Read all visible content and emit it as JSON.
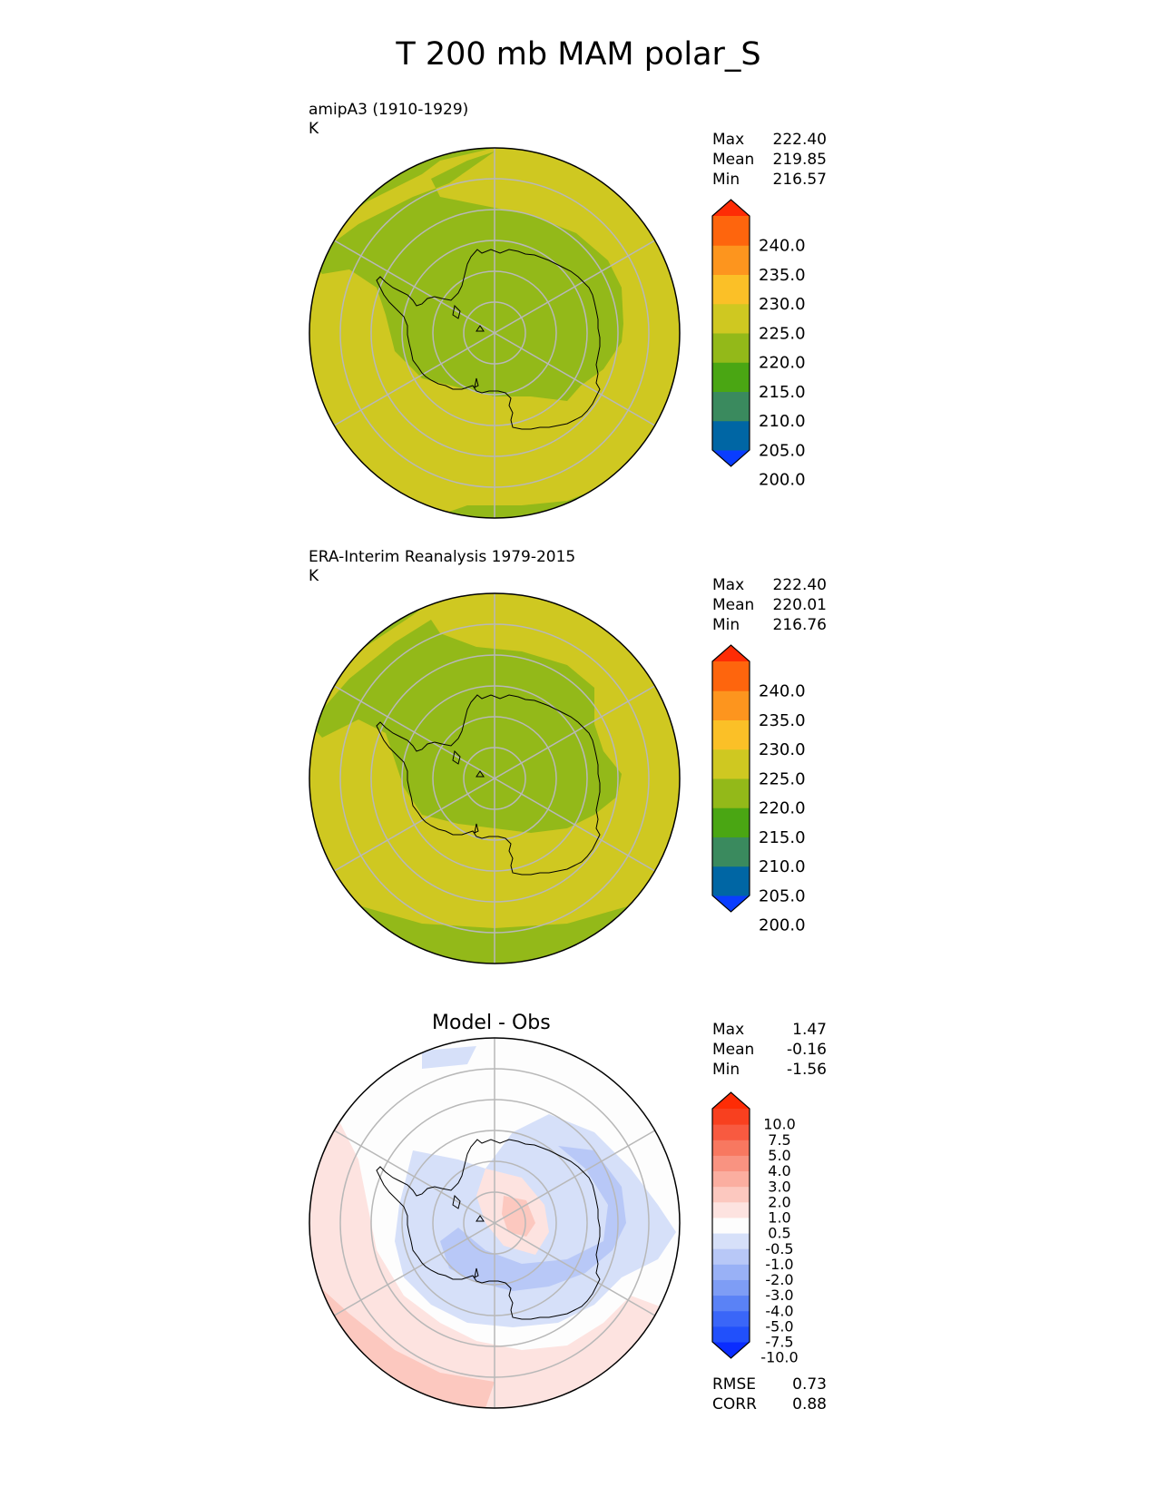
{
  "title": "T 200 mb MAM polar_S",
  "panels": [
    {
      "name": "model",
      "label": "amipA3 (1910-1929)",
      "units": "K",
      "stats": [
        [
          "Max",
          "222.40"
        ],
        [
          "Mean",
          "219.85"
        ],
        [
          "Min",
          "216.57"
        ]
      ]
    },
    {
      "name": "obs",
      "label": "ERA-Interim Reanalysis 1979-2015",
      "units": "K",
      "stats": [
        [
          "Max",
          "222.40"
        ],
        [
          "Mean",
          "220.01"
        ],
        [
          "Min",
          "216.76"
        ]
      ]
    },
    {
      "name": "diff",
      "title": "Model - Obs",
      "stats": [
        [
          "Max",
          "1.47"
        ],
        [
          "Mean",
          "-0.16"
        ],
        [
          "Min",
          "-1.56"
        ]
      ],
      "metrics": [
        [
          "RMSE",
          "0.73"
        ],
        [
          "CORR",
          "0.88"
        ]
      ]
    }
  ],
  "chart_data": [
    {
      "type": "heatmap",
      "subtype": "polar-stereographic contour map",
      "title": "amipA3 (1910-1929)",
      "units": "K",
      "levels": [
        200.0,
        205.0,
        210.0,
        215.0,
        220.0,
        225.0,
        230.0,
        235.0,
        240.0
      ],
      "colors": [
        "#0a3dff",
        "#0066a4",
        "#3a8a5e",
        "#4aa613",
        "#93b919",
        "#cfc821",
        "#fbc027",
        "#fd951e",
        "#fe650d",
        "#fe2c05"
      ],
      "colorbar_ticks": [
        "240.0",
        "235.0",
        "230.0",
        "225.0",
        "220.0",
        "215.0",
        "210.0",
        "205.0",
        "200.0"
      ],
      "stats": {
        "max": 222.4,
        "mean": 219.85,
        "min": 216.57
      }
    },
    {
      "type": "heatmap",
      "subtype": "polar-stereographic contour map",
      "title": "ERA-Interim Reanalysis 1979-2015",
      "units": "K",
      "levels": [
        200.0,
        205.0,
        210.0,
        215.0,
        220.0,
        225.0,
        230.0,
        235.0,
        240.0
      ],
      "colors": [
        "#0a3dff",
        "#0066a4",
        "#3a8a5e",
        "#4aa613",
        "#93b919",
        "#cfc821",
        "#fbc027",
        "#fd951e",
        "#fe650d",
        "#fe2c05"
      ],
      "colorbar_ticks": [
        "240.0",
        "235.0",
        "230.0",
        "225.0",
        "220.0",
        "215.0",
        "210.0",
        "205.0",
        "200.0"
      ],
      "stats": {
        "max": 222.4,
        "mean": 220.01,
        "min": 216.76
      }
    },
    {
      "type": "heatmap",
      "subtype": "polar-stereographic difference map",
      "title": "Model - Obs",
      "levels": [
        -10.0,
        -7.5,
        -5.0,
        -4.0,
        -3.0,
        -2.0,
        -1.0,
        -0.5,
        0.5,
        1.0,
        2.0,
        3.0,
        4.0,
        5.0,
        7.5,
        10.0
      ],
      "colors": [
        "#0a2cff",
        "#2150fb",
        "#3a66f8",
        "#5a82f6",
        "#7e9df5",
        "#99b1f6",
        "#b8c8f7",
        "#d6e0f9",
        "#fdfdfd",
        "#fde3e0",
        "#fcc8bf",
        "#fbaea0",
        "#f99381",
        "#f87860",
        "#f85a40",
        "#f8401f",
        "#fe2c05"
      ],
      "colorbar_ticks": [
        "10.0",
        "7.5",
        "5.0",
        "4.0",
        "3.0",
        "2.0",
        "1.0",
        "0.5",
        "-0.5",
        "-1.0",
        "-2.0",
        "-3.0",
        "-4.0",
        "-5.0",
        "-7.5",
        "-10.0"
      ],
      "stats": {
        "max": 1.47,
        "mean": -0.16,
        "min": -1.56
      },
      "metrics": {
        "rmse": 0.73,
        "corr": 0.88
      }
    }
  ],
  "colors": {
    "yellow_band": "#cfc821",
    "green_band": "#93b919",
    "diff_warm": "#fde3e0",
    "diff_warm2": "#fcc8bf",
    "diff_cool": "#d6e0f9",
    "diff_cool2": "#b8c8f7"
  }
}
